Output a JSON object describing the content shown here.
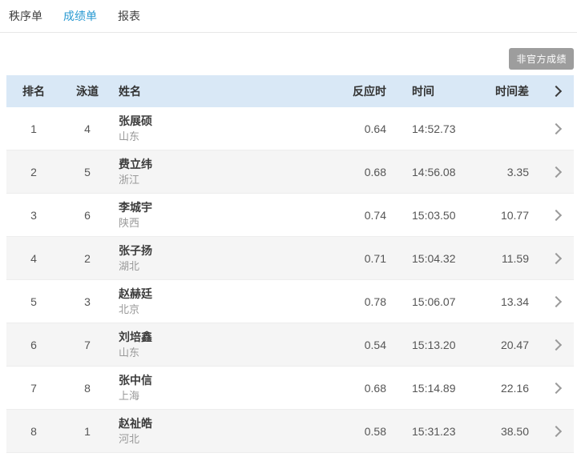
{
  "tabs": [
    {
      "label": "秩序单",
      "active": false
    },
    {
      "label": "成绩单",
      "active": true
    },
    {
      "label": "报表",
      "active": false
    }
  ],
  "badge": {
    "label": "非官方成绩"
  },
  "table": {
    "headers": {
      "rank": "排名",
      "lane": "泳道",
      "name": "姓名",
      "reaction": "反应时",
      "time": "时间",
      "diff": "时间差"
    },
    "rows": [
      {
        "rank": "1",
        "lane": "4",
        "name": "张展硕",
        "province": "山东",
        "reaction": "0.64",
        "time": "14:52.73",
        "diff": ""
      },
      {
        "rank": "2",
        "lane": "5",
        "name": "费立纬",
        "province": "浙江",
        "reaction": "0.68",
        "time": "14:56.08",
        "diff": "3.35"
      },
      {
        "rank": "3",
        "lane": "6",
        "name": "李城宇",
        "province": "陕西",
        "reaction": "0.74",
        "time": "15:03.50",
        "diff": "10.77"
      },
      {
        "rank": "4",
        "lane": "2",
        "name": "张子扬",
        "province": "湖北",
        "reaction": "0.71",
        "time": "15:04.32",
        "diff": "11.59"
      },
      {
        "rank": "5",
        "lane": "3",
        "name": "赵赫廷",
        "province": "北京",
        "reaction": "0.78",
        "time": "15:06.07",
        "diff": "13.34"
      },
      {
        "rank": "6",
        "lane": "7",
        "name": "刘培鑫",
        "province": "山东",
        "reaction": "0.54",
        "time": "15:13.20",
        "diff": "20.47"
      },
      {
        "rank": "7",
        "lane": "8",
        "name": "张中信",
        "province": "上海",
        "reaction": "0.68",
        "time": "15:14.89",
        "diff": "22.16"
      },
      {
        "rank": "8",
        "lane": "1",
        "name": "赵祉皓",
        "province": "河北",
        "reaction": "0.58",
        "time": "15:31.23",
        "diff": "38.50"
      }
    ]
  },
  "colors": {
    "accent_blue": "#2a9ad2",
    "header_bg": "#d9e8f6",
    "badge_bg": "#9d9d9d",
    "zebra_bg": "#f5f5f5"
  }
}
